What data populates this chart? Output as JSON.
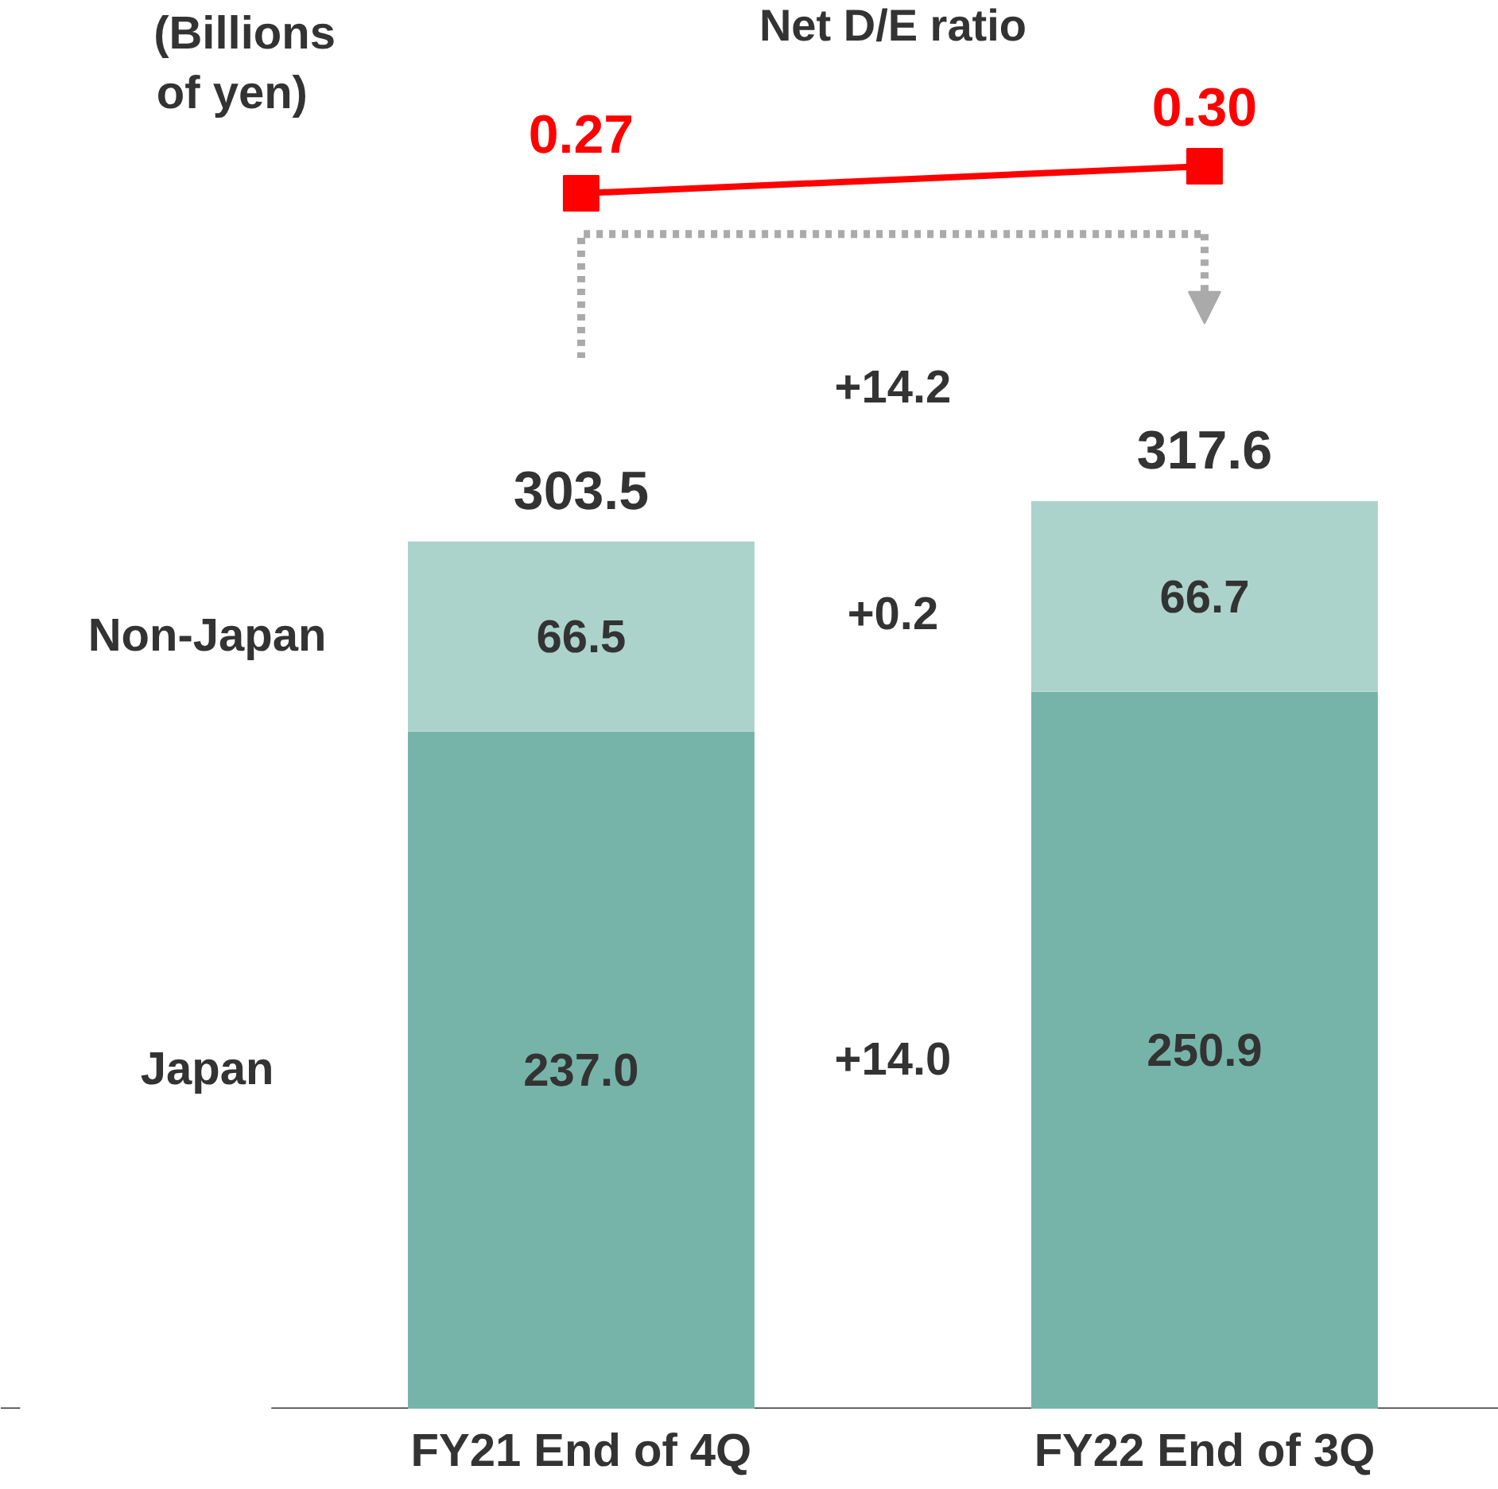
{
  "chart_data": [
    {
      "type": "line",
      "categories": [
        null,
        null
      ],
      "tick_labels": false,
      "series": [
        {
          "name": "Net D/E ratio",
          "color": "#ff0000",
          "values": [
            0.27,
            0.3
          ],
          "value_labels": [
            "0.27",
            "0.30"
          ]
        }
      ],
      "marker": "square",
      "annotations": [
        "(Billions of yen)"
      ],
      "grid": false
    },
    {
      "type": "bar",
      "stacked": true,
      "tick_labels": "x",
      "categories": [
        "FY21 End of 4Q",
        "FY22 End of 3Q"
      ],
      "series": [
        {
          "name": "Japan",
          "color": "#76b4aa",
          "values": [
            237.0,
            250.9
          ],
          "value_labels": [
            "237.0",
            "250.9"
          ]
        },
        {
          "name": "Non-Japan",
          "color": "#acd3cb",
          "values": [
            66.5,
            66.7
          ],
          "value_labels": [
            "66.5",
            "66.7"
          ]
        }
      ],
      "totals": [
        "303.5",
        "317.6"
      ],
      "annotations": [
        "+14.2",
        "+0.2",
        "+14.0"
      ],
      "legend": false,
      "grid": false
    }
  ]
}
